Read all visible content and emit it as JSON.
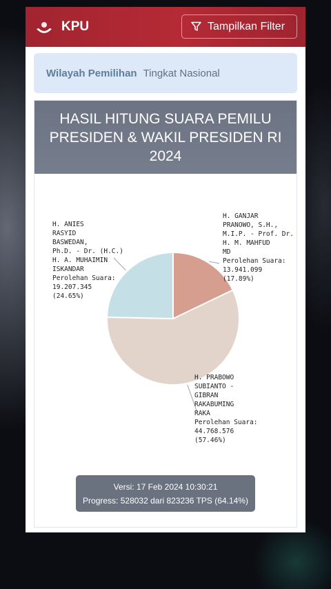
{
  "header": {
    "brand": "KPU",
    "filter_label": "Tampilkan Filter"
  },
  "region": {
    "label": "Wilayah Pemilihan",
    "value": "Tingkat Nasional"
  },
  "card": {
    "title_lines": [
      "HASIL HITUNG SUARA PEMILU",
      "PRESIDEN & WAKIL PRESIDEN RI",
      "2024"
    ]
  },
  "colors": {
    "header": "#b0293a",
    "slice_anies": "#c5dfe7",
    "slice_ganjar": "#d59e8f",
    "slice_prabowo": "#e2d4cb"
  },
  "chart_data": {
    "type": "pie",
    "series": [
      {
        "label_lines": [
          "H. GANJAR",
          "PRANOWO, S.H.,",
          "M.I.P. - Prof. Dr.",
          "H. M. MAHFUD",
          "MD"
        ],
        "vote_caption": "Perolehan Suara:",
        "votes": "13.941.099",
        "percent_text": "(17.89%)",
        "value": 17.89
      },
      {
        "label_lines": [
          "H. PRABOWO",
          "SUBIANTO -",
          "GIBRAN",
          "RAKABUMING",
          "RAKA"
        ],
        "vote_caption": "Perolehan Suara:",
        "votes": "44.768.576",
        "percent_text": "(57.46%)",
        "value": 57.46
      },
      {
        "label_lines": [
          "H. ANIES",
          "RASYID",
          "BASWEDAN,",
          "Ph.D. - Dr. (H.C.)",
          "H. A. MUHAIMIN",
          "ISKANDAR"
        ],
        "vote_caption": "Perolehan Suara:",
        "votes": "19.207.345",
        "percent_text": "(24.65%)",
        "value": 24.65
      }
    ]
  },
  "footer": {
    "version": "Versi: 17 Feb 2024 10:30:21",
    "progress": "Progress: 528032 dari 823236 TPS (64.14%)"
  }
}
